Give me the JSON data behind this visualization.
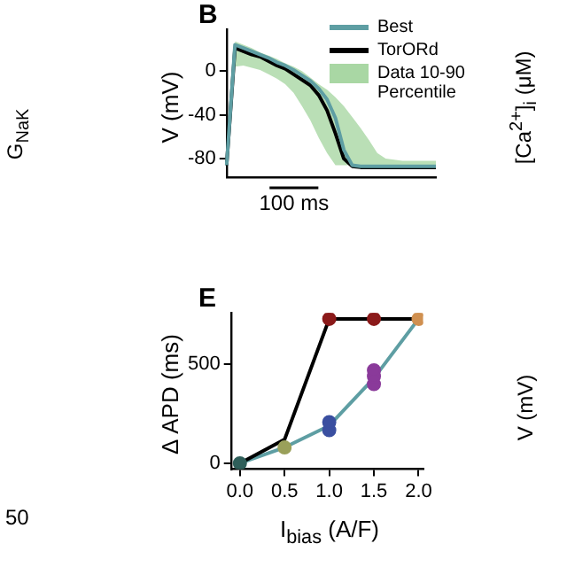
{
  "chart_data": [
    {
      "type": "line",
      "title": "B",
      "ylabel": "V (mV)",
      "ylim": [
        -97,
        38
      ],
      "yticks": [
        0,
        -40,
        -80
      ],
      "tick_labels": "y",
      "legend": "top right",
      "marker": "none",
      "grid": false,
      "categories": [
        null,
        null,
        null,
        null,
        null,
        null,
        null,
        null,
        null,
        null,
        null,
        null,
        null,
        null,
        null,
        null,
        null,
        null,
        null,
        null,
        null,
        null,
        null,
        null,
        null,
        null
      ],
      "annotations": [
        "100 ms",
        "G$_{NaK}$",
        "[Ca$^{2+}$]$_{i}$ (μM)"
      ],
      "series": [
        {
          "name": "Best",
          "color": "#5e9ea3",
          "values": [
            -86,
            24,
            21,
            18,
            15,
            12,
            8,
            5,
            1,
            -4,
            -9,
            -16,
            -26,
            -43,
            -72,
            -86,
            -87,
            -87,
            -87,
            -87,
            -87,
            -87,
            -87,
            -87,
            -87,
            -87
          ]
        },
        {
          "name": "TorORd",
          "color": "#000000",
          "values": [
            -86,
            21,
            18,
            15,
            13,
            9,
            5,
            2,
            -3,
            -8,
            -13,
            -22,
            -36,
            -57,
            -80,
            -87,
            -88,
            -88,
            -88,
            -88,
            -88,
            -88,
            -88,
            -88,
            -88,
            -88
          ]
        },
        {
          "name": "Data 10-90 Percentile",
          "type": "area",
          "color": "#a9d7a4",
          "values": [
            null,
            null,
            null,
            null,
            null,
            null,
            null,
            null,
            null,
            null,
            null,
            null,
            null,
            null,
            null,
            null,
            null,
            null,
            null,
            null,
            null,
            null,
            null,
            null,
            null,
            null
          ],
          "upper": [
            null,
            27,
            24,
            21,
            17,
            14,
            11,
            7,
            4,
            0,
            -6,
            -12,
            -17,
            -24,
            -32,
            -42,
            -52,
            -63,
            -75,
            -80,
            -81,
            -82,
            -82,
            -82,
            -82,
            -82
          ],
          "lower": [
            null,
            4,
            5,
            3,
            1,
            -3,
            -7,
            -12,
            -20,
            -32,
            -45,
            -61,
            -75,
            -86,
            -86,
            -86,
            -86,
            -86,
            -86,
            -86,
            -86,
            -86,
            -86,
            -86,
            -86,
            -86
          ]
        }
      ]
    },
    {
      "type": "line",
      "title": "E",
      "xlabel": "I$_{bias}$ (A/F)",
      "ylabel": "Δ APD (ms)",
      "xlim": [
        -0.1,
        2.05
      ],
      "xticks": [
        {
          "value": 0,
          "label": "0.0"
        },
        {
          "value": 0.5,
          "label": "0.5"
        },
        {
          "value": 1,
          "label": "1.0"
        },
        {
          "value": 1.5,
          "label": "1.5"
        },
        {
          "value": 2,
          "label": "2.0"
        }
      ],
      "ylim": [
        -30,
        760
      ],
      "yticks": [
        0,
        500
      ],
      "grid": false,
      "legend": false,
      "marker": "none",
      "annotations": [
        "50",
        "V (mV)"
      ],
      "series": [
        {
          "color": "#000000",
          "x": [
            0,
            0.5,
            1,
            1.5,
            2
          ],
          "values": [
            0,
            120,
            730,
            730,
            730
          ]
        },
        {
          "color": "#5e9ea3",
          "x": [
            0,
            0.5,
            1,
            1.5,
            2
          ],
          "values": [
            0,
            80,
            190,
            430,
            730
          ]
        },
        {
          "type": "scatter",
          "marker": "circle",
          "x": [
            0,
            0.5,
            1,
            1,
            1.5,
            1.5,
            1.5,
            1,
            1.5,
            2
          ],
          "values": [
            0,
            80,
            167,
            208,
            400,
            440,
            470,
            730,
            730,
            730
          ],
          "colors": [
            "#2f5f5a",
            "#9aa05a",
            "#3a4fa0",
            "#3a4fa0",
            "#8a3a9a",
            "#8a3a9a",
            "#8a3a9a",
            "#8b1a1a",
            "#8b1a1a",
            "#d09050"
          ]
        }
      ]
    }
  ]
}
